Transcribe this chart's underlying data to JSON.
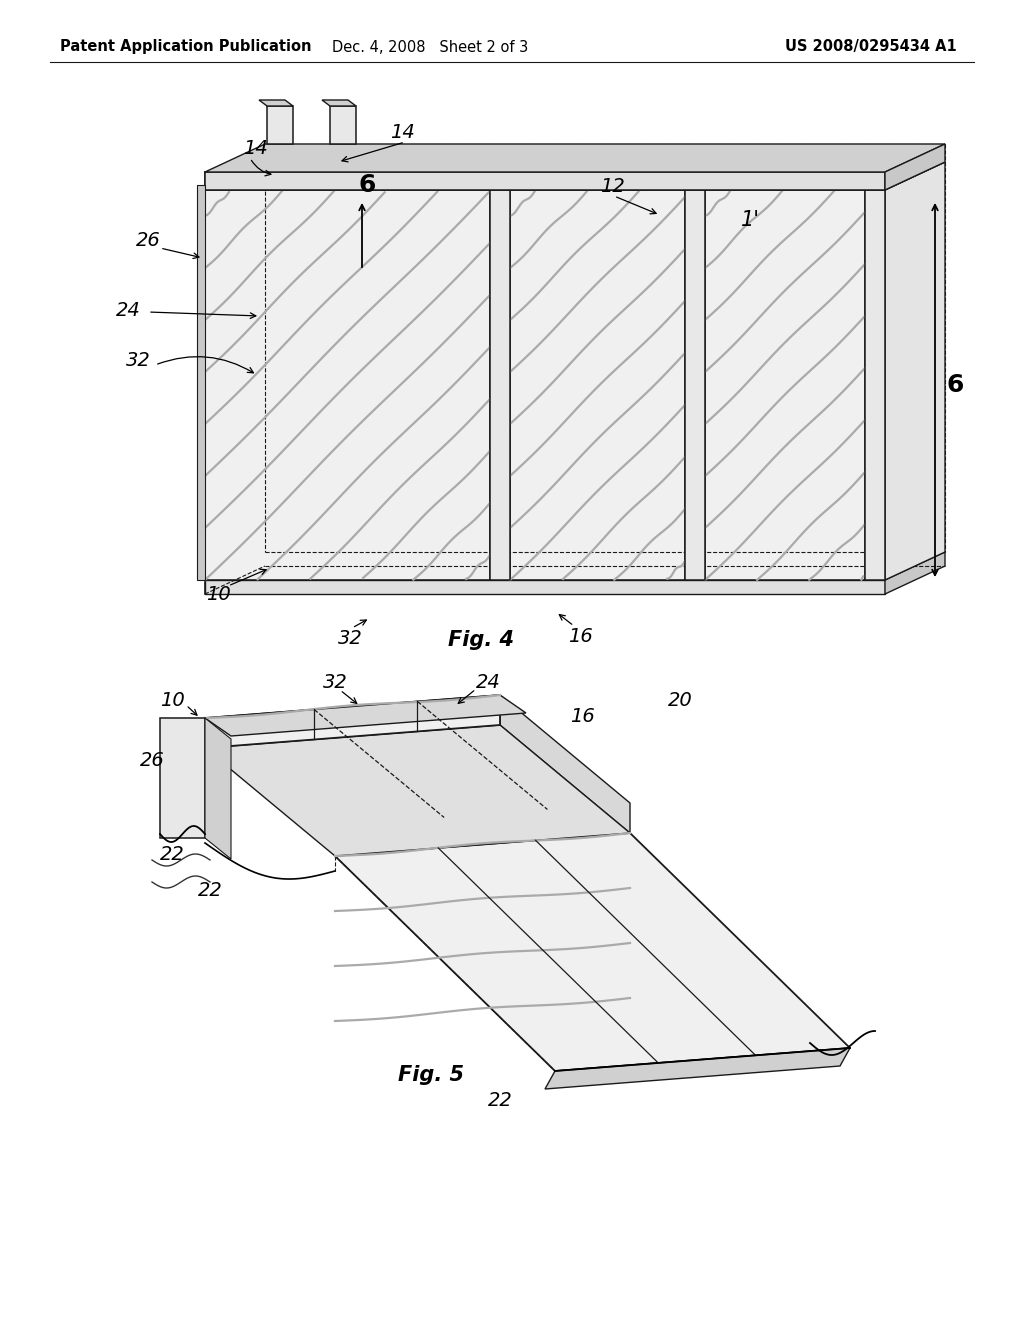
{
  "header_left": "Patent Application Publication",
  "header_mid": "Dec. 4, 2008   Sheet 2 of 3",
  "header_right": "US 2008/0295434 A1",
  "fig4_label": "Fig. 4",
  "fig5_label": "Fig. 5",
  "bg_color": "#ffffff",
  "line_color": "#1a1a1a",
  "stripe_color": "#aaaaaa",
  "header_fontsize": 10.5,
  "label_fontsize": 14,
  "fig_label_fontsize": 15,
  "bold_label_fontsize": 17
}
